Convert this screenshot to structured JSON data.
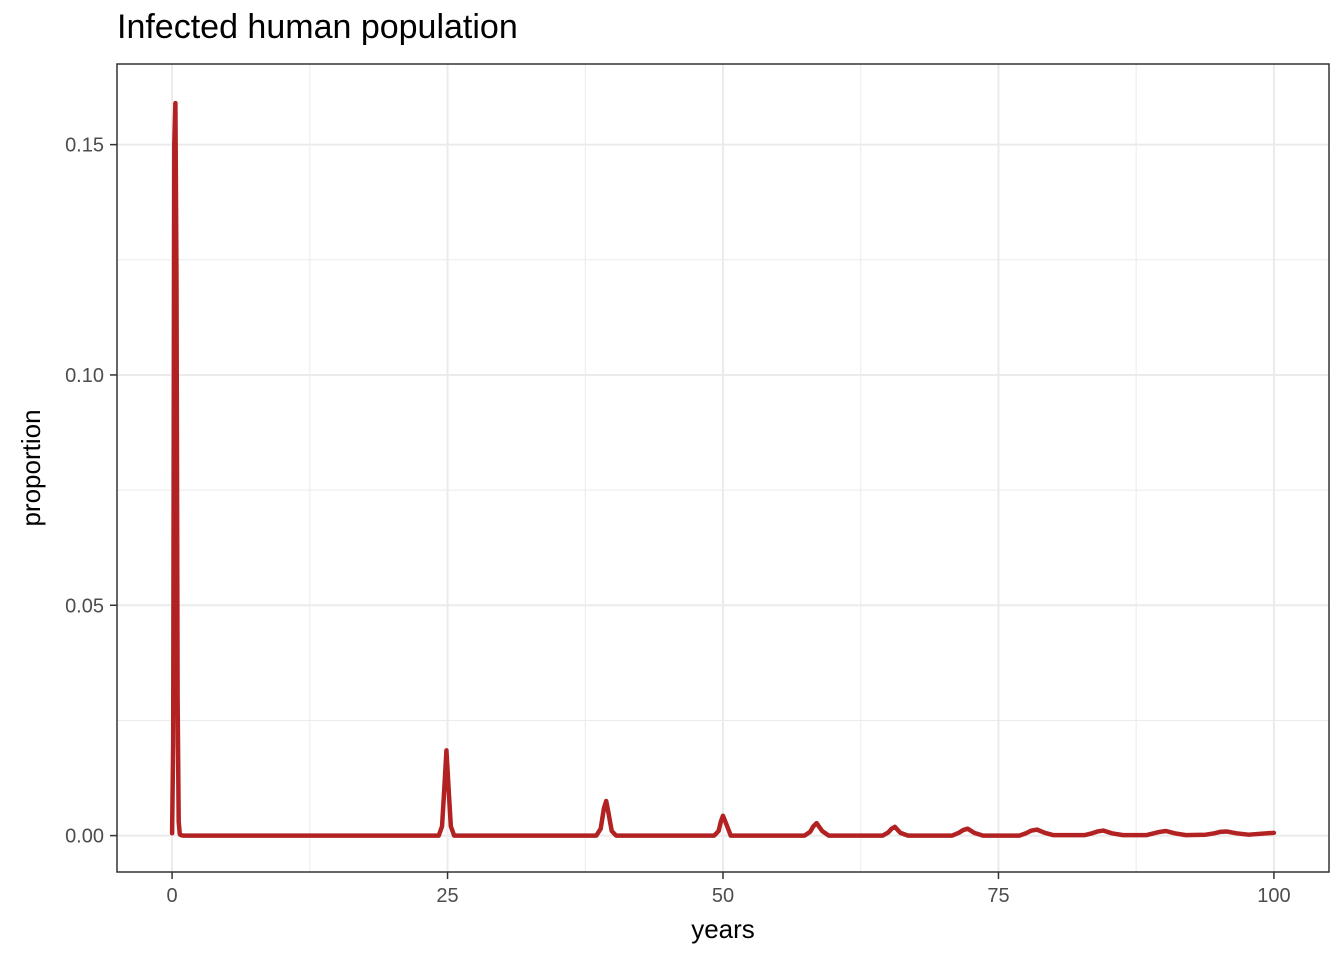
{
  "chart_data": {
    "type": "line",
    "title": "Infected human population",
    "xlabel": "years",
    "ylabel": "proportion",
    "xlim": [
      -5,
      105
    ],
    "ylim": [
      -0.0079,
      0.1675
    ],
    "x_ticks": [
      0,
      25,
      50,
      75,
      100
    ],
    "x_tick_labels": [
      "0",
      "25",
      "50",
      "75",
      "100"
    ],
    "y_ticks": [
      0.0,
      0.05,
      0.1,
      0.15
    ],
    "y_tick_labels": [
      "0.00",
      "0.05",
      "0.10",
      "0.15"
    ],
    "grid": true,
    "line_color": "#b22222",
    "series": [
      {
        "x": [
          0.0,
          0.1,
          0.2,
          0.3,
          0.4,
          0.5,
          0.6,
          0.7,
          0.8,
          1.0,
          2.0,
          24.2,
          24.5,
          24.7,
          24.9,
          25.1,
          25.3,
          25.6,
          38.5,
          38.9,
          39.2,
          39.4,
          39.6,
          39.9,
          40.3,
          49.2,
          49.6,
          49.8,
          50.0,
          50.3,
          50.7,
          57.4,
          57.9,
          58.2,
          58.5,
          59.0,
          59.6,
          64.5,
          65.0,
          65.3,
          65.6,
          66.1,
          66.8,
          70.8,
          71.4,
          71.8,
          72.2,
          72.8,
          73.6,
          76.9,
          77.5,
          78.0,
          78.5,
          79.2,
          80.0,
          82.8,
          83.5,
          84.0,
          84.5,
          85.3,
          86.3,
          88.4,
          89.1,
          89.6,
          90.2,
          91.0,
          92.0,
          93.8,
          94.6,
          95.1,
          95.7,
          96.6,
          97.7,
          100.0
        ],
        "y": [
          0.0005,
          0.02,
          0.15,
          0.159,
          0.12,
          0.03,
          0.003,
          0.0003,
          0.0001,
          0.0,
          0.0,
          0.0,
          0.002,
          0.01,
          0.0185,
          0.01,
          0.002,
          0.0,
          0.0,
          0.0015,
          0.006,
          0.0075,
          0.005,
          0.001,
          0.0,
          0.0,
          0.001,
          0.003,
          0.0043,
          0.0025,
          0.0,
          0.0,
          0.0008,
          0.002,
          0.0027,
          0.001,
          0.0,
          0.0,
          0.0007,
          0.0015,
          0.0019,
          0.0006,
          0.0,
          0.0,
          0.0006,
          0.0012,
          0.0015,
          0.0006,
          0.0,
          0.0,
          0.0005,
          0.0011,
          0.0013,
          0.0006,
          0.0001,
          0.0001,
          0.0005,
          0.0009,
          0.0011,
          0.0005,
          0.0001,
          0.0001,
          0.0005,
          0.0008,
          0.001,
          0.0005,
          0.0001,
          0.0002,
          0.0005,
          0.0008,
          0.0009,
          0.0005,
          0.0002,
          0.0006
        ]
      }
    ]
  }
}
